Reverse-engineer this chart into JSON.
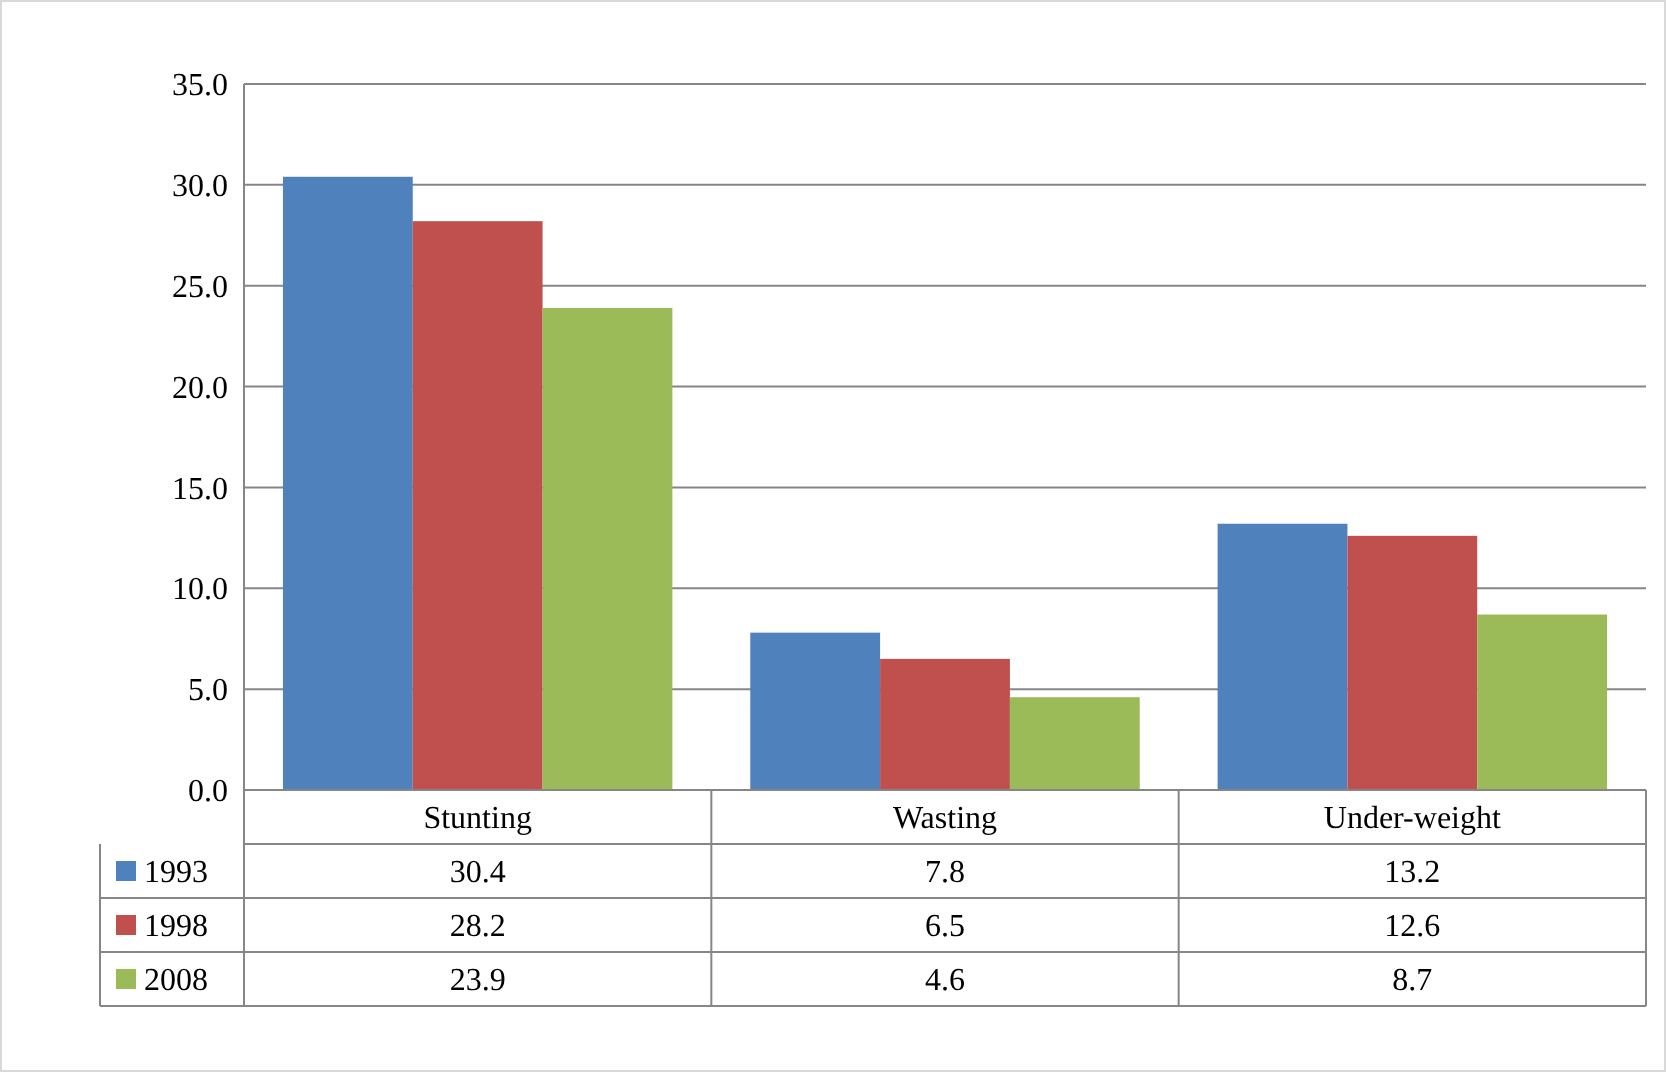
{
  "chart_data": {
    "type": "bar",
    "categories": [
      "Stunting",
      "Wasting",
      "Under-weight"
    ],
    "series": [
      {
        "name": "1993",
        "color": "#4f81bd",
        "values": [
          30.4,
          7.8,
          13.2
        ]
      },
      {
        "name": "1998",
        "color": "#c0504d",
        "values": [
          28.2,
          6.5,
          12.6
        ]
      },
      {
        "name": "2008",
        "color": "#9bbb59",
        "values": [
          23.9,
          4.6,
          8.7
        ]
      }
    ],
    "ylim": [
      0,
      35
    ],
    "yticks": [
      {
        "value": 0,
        "label": "0.0"
      },
      {
        "value": 5,
        "label": "5.0"
      },
      {
        "value": 10,
        "label": "10.0"
      },
      {
        "value": 15,
        "label": "15.0"
      },
      {
        "value": 20,
        "label": "20.0"
      },
      {
        "value": 25,
        "label": "25.0"
      },
      {
        "value": 30,
        "label": "30.0"
      },
      {
        "value": 35,
        "label": "35.0"
      }
    ],
    "grid": "y",
    "legend": "bottom",
    "data_labels": true
  }
}
